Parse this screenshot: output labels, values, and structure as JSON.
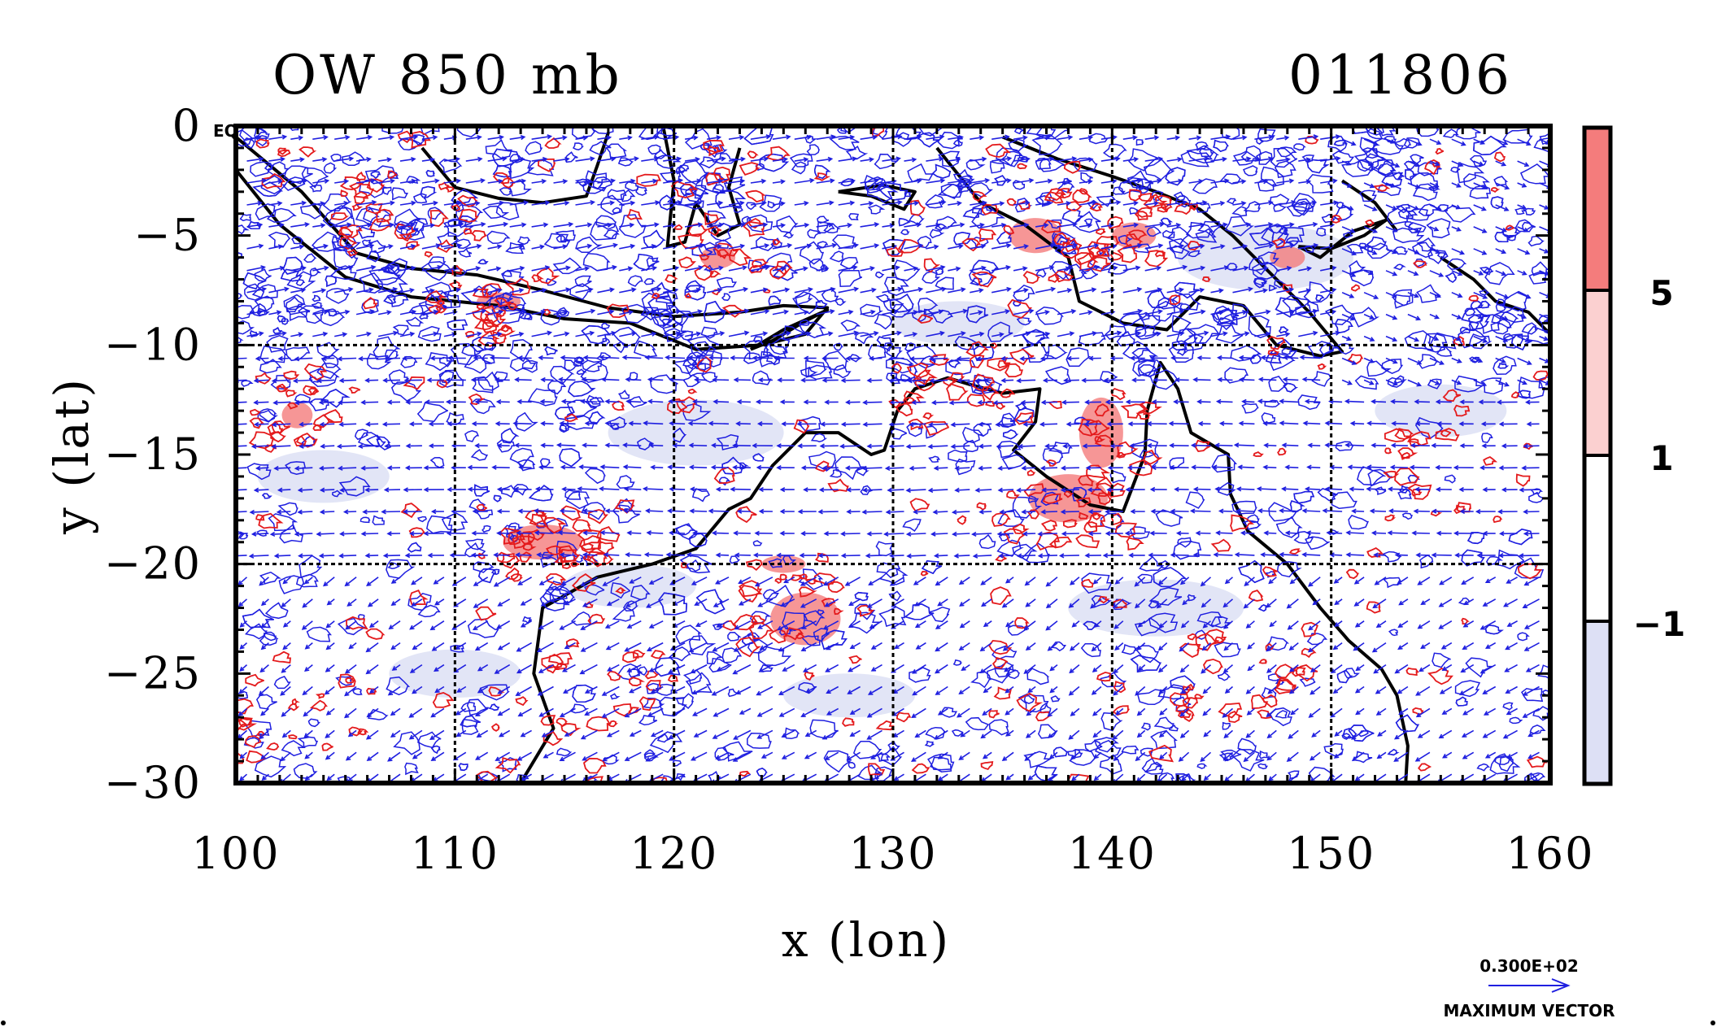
{
  "title": "OW 850 mb",
  "date_code": "011806",
  "corner_label": "EQ",
  "xlabel": "x (lon)",
  "ylabel": "y (lat)",
  "x_ticks": [
    "100",
    "110",
    "120",
    "130",
    "140",
    "150",
    "160"
  ],
  "y_ticks": [
    "0",
    "−5",
    "−10",
    "−15",
    "−20",
    "−25",
    "−30"
  ],
  "colorbar": {
    "labels": [
      "5",
      "1",
      "−1"
    ],
    "levels": [
      {
        "name": "strong-positive",
        "color": "#f47c7c"
      },
      {
        "name": "weak-positive",
        "color": "#fbd0d0"
      },
      {
        "name": "neutral",
        "color": "#ffffff"
      },
      {
        "name": "negative",
        "color": "#dde0f5"
      }
    ]
  },
  "vector_key": {
    "value_label": "0.300E+02",
    "caption": "MAXIMUM VECTOR"
  },
  "colors": {
    "vector": "#1f1fe0",
    "positive_contour": "#e41a1c",
    "coastline": "#000000",
    "grid": "#000000"
  },
  "chart_data": {
    "type": "heatmap",
    "variable": "OW 850 mb",
    "date": "011806",
    "xlim": [
      100,
      160
    ],
    "ylim": [
      -30,
      0
    ],
    "grid_lon": [
      110,
      120,
      130,
      140,
      150
    ],
    "grid_lat": [
      -10,
      -20
    ],
    "colorbar_levels": [
      5,
      1,
      -1
    ],
    "overlays": [
      "wind vectors",
      "OW contours",
      "coastlines"
    ]
  }
}
